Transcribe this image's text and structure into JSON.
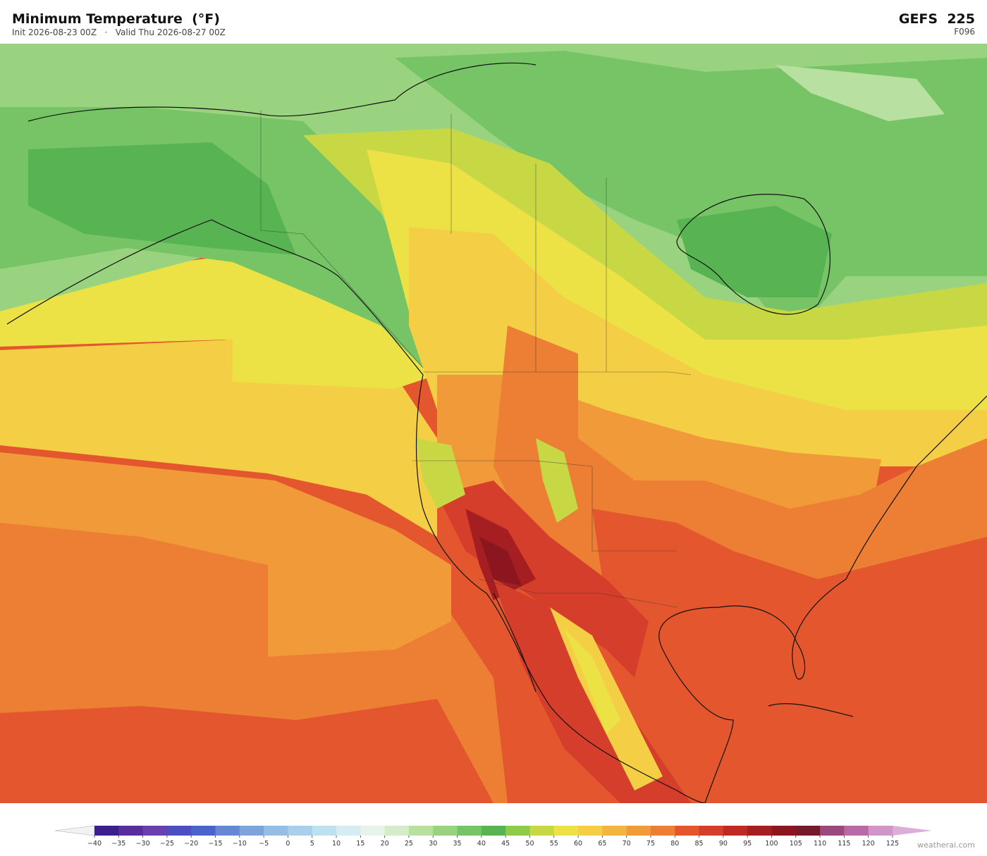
{
  "header": {
    "title": "Minimum Temperature  (°F)",
    "subtitle": "Init 2026-08-23 00Z   ·   Valid Thu 2026-08-27 00Z",
    "model": "GEFS  225",
    "forecast_hour": "F096"
  },
  "colorbar": {
    "ticks": [
      {
        "value": -40,
        "label": "−40"
      },
      {
        "value": -35,
        "label": "−35"
      },
      {
        "value": -30,
        "label": "−30"
      },
      {
        "value": -25,
        "label": "−25"
      },
      {
        "value": -20,
        "label": "−20"
      },
      {
        "value": -15,
        "label": "−15"
      },
      {
        "value": -10,
        "label": "−10"
      },
      {
        "value": -5,
        "label": "−5"
      },
      0,
      5,
      10,
      15,
      20,
      25,
      30,
      35,
      40,
      45,
      50,
      55,
      60,
      65,
      70,
      75,
      80,
      85,
      90,
      95,
      100,
      105,
      110,
      115,
      120,
      125
    ],
    "colors": [
      "#3b1f8f",
      "#5a2d9c",
      "#6a3fb0",
      "#4b4fc0",
      "#4d63cc",
      "#6688d4",
      "#7fa4dc",
      "#96bde3",
      "#a9cfea",
      "#bfe0ef",
      "#d6ecf2",
      "#e6f4ec",
      "#d4ecc8",
      "#b8e0a0",
      "#9ad37f",
      "#76c466",
      "#58b352",
      "#8fca4a",
      "#c8d845",
      "#ece245",
      "#f4cf45",
      "#f3b440",
      "#f09a3a",
      "#ec7f34",
      "#e4572e",
      "#d53e2a",
      "#c02a24",
      "#a51e22",
      "#8c1620",
      "#751a2a",
      "#9c4a7e",
      "#b86aa6",
      "#d195c8"
    ],
    "under_color": "#f2f2f2",
    "over_color": "#dbaed8"
  },
  "watermark": "weatherai.com"
}
